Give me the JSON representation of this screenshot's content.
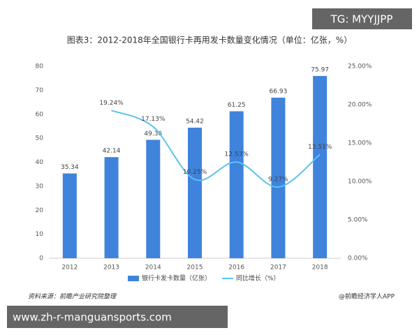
{
  "chart_data": {
    "type": "bar-line",
    "title": "图表3：2012-2018年全国银行卡再用发卡数量变化情况（单位：亿张，%）",
    "categories": [
      "2012",
      "2013",
      "2014",
      "2015",
      "2016",
      "2017",
      "2018"
    ],
    "series": [
      {
        "name": "银行卡发卡数量（亿张）",
        "type": "bar",
        "color": "#3f83dc",
        "values": [
          35.34,
          42.14,
          49.36,
          54.42,
          61.25,
          66.93,
          75.97
        ]
      },
      {
        "name": "同比增长（%）",
        "type": "line",
        "axis": "y2",
        "color": "#5cc3ee",
        "values": [
          null,
          19.24,
          17.13,
          10.25,
          12.53,
          9.27,
          13.51
        ],
        "value_labels": [
          null,
          "19.24%",
          "17.13%",
          "10.25%",
          "12.53%",
          "9.27%",
          "13.51%"
        ]
      }
    ],
    "ylim": [
      0,
      80
    ],
    "yticks": [
      0,
      10,
      20,
      30,
      40,
      50,
      60,
      70,
      80
    ],
    "y2lim": [
      0,
      25
    ],
    "y2ticks": [
      {
        "value": 0,
        "label": "0.00%"
      },
      {
        "value": 5,
        "label": "5.00%"
      },
      {
        "value": 10,
        "label": "10.00%"
      },
      {
        "value": 15,
        "label": "15.00%"
      },
      {
        "value": 20,
        "label": "20.00%"
      },
      {
        "value": 25,
        "label": "25.00%"
      }
    ],
    "legend": "bottom",
    "source": "资料来源：前瞻产业研究院整理",
    "credit": "@前瞻经济学人APP",
    "watermark_top": "TG: MYYJJPP",
    "watermark_bottom": "www.zh-r-manguansports.com"
  }
}
